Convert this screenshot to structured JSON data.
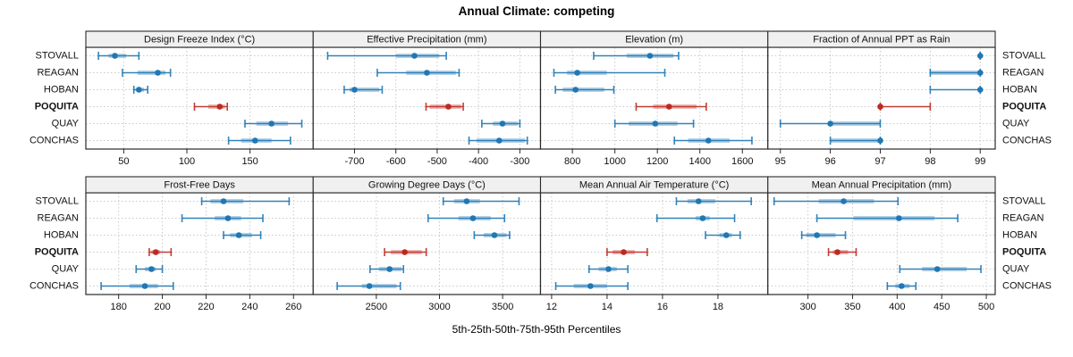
{
  "title": "Annual Climate: competing",
  "axis_title": "5th-25th-50th-75th-95th Percentiles",
  "chart_data": {
    "type": "trellis-dotplot",
    "title": "Annual Climate: competing",
    "xlabel": "5th-25th-50th-75th-95th Percentiles",
    "note": "each bar encodes [5th, 25th, 50th, 75th, 95th] percentiles",
    "sites": [
      "STOVALL",
      "REAGAN",
      "HOBAN",
      "POQUITA",
      "QUAY",
      "CONCHAS"
    ],
    "highlight_site": "POQUITA",
    "colors": {
      "normal": "#1f77b4",
      "highlight": "#bb2a20",
      "grid": "#c9c9c9",
      "frame": "#2a2a2a",
      "strip_bg": "#f0f0f0",
      "text": "#111111"
    },
    "panels": [
      {
        "row": 0,
        "col": 0,
        "title": "Design Freeze Index (°C)",
        "xlim": [
          20,
          200
        ],
        "ticks": [
          50,
          100,
          150
        ],
        "data": {
          "STOVALL": [
            30,
            38,
            43,
            52,
            62
          ],
          "REAGAN": [
            49,
            61,
            77,
            83,
            87
          ],
          "HOBAN": [
            58,
            60,
            62,
            66,
            69
          ],
          "POQUITA": [
            106,
            117,
            126,
            130,
            132
          ],
          "QUAY": [
            146,
            155,
            167,
            180,
            191
          ],
          "CONCHAS": [
            133,
            143,
            154,
            167,
            182
          ]
        }
      },
      {
        "row": 0,
        "col": 1,
        "title": "Effective Precipitation (mm)",
        "xlim": [
          -800,
          -250
        ],
        "ticks": [
          -700,
          -600,
          -500,
          -400,
          -300
        ],
        "data": {
          "STOVALL": [
            -765,
            -600,
            -555,
            -495,
            -478
          ],
          "REAGAN": [
            -645,
            -575,
            -525,
            -455,
            -447
          ],
          "HOBAN": [
            -725,
            -712,
            -700,
            -640,
            -633
          ],
          "POQUITA": [
            -527,
            -518,
            -473,
            -442,
            -437
          ],
          "QUAY": [
            -392,
            -365,
            -342,
            -305,
            -300
          ],
          "CONCHAS": [
            -423,
            -405,
            -350,
            -288,
            -282
          ]
        }
      },
      {
        "row": 0,
        "col": 2,
        "title": "Elevation (m)",
        "xlim": [
          650,
          1720
        ],
        "ticks": [
          800,
          1000,
          1200,
          1400,
          1600
        ],
        "data": {
          "STOVALL": [
            900,
            1055,
            1165,
            1275,
            1300
          ],
          "REAGAN": [
            713,
            775,
            823,
            962,
            1235
          ],
          "HOBAN": [
            720,
            755,
            815,
            950,
            995
          ],
          "POQUITA": [
            1100,
            1180,
            1255,
            1385,
            1430
          ],
          "QUAY": [
            1000,
            1065,
            1190,
            1295,
            1370
          ],
          "CONCHAS": [
            1280,
            1345,
            1440,
            1540,
            1645
          ]
        }
      },
      {
        "row": 0,
        "col": 3,
        "title": "Fraction of Annual PPT as Rain",
        "xlim": [
          94.75,
          99.3
        ],
        "ticks": [
          95,
          96,
          97,
          98,
          99
        ],
        "data": {
          "STOVALL": [
            99,
            99,
            99,
            99,
            99
          ],
          "REAGAN": [
            98,
            98,
            99,
            99,
            99
          ],
          "HOBAN": [
            98,
            99,
            99,
            99,
            99
          ],
          "POQUITA": [
            97,
            97,
            97,
            97,
            98
          ],
          "QUAY": [
            95,
            96,
            96,
            97,
            97
          ],
          "CONCHAS": [
            96,
            96,
            97,
            97,
            97
          ]
        }
      },
      {
        "row": 1,
        "col": 0,
        "title": "Frost-Free Days",
        "xlim": [
          165,
          269
        ],
        "ticks": [
          180,
          200,
          220,
          240,
          260
        ],
        "data": {
          "STOVALL": [
            218,
            222,
            228,
            237,
            258
          ],
          "REAGAN": [
            209,
            224,
            230,
            236,
            246
          ],
          "HOBAN": [
            228,
            231,
            235,
            241,
            245
          ],
          "POQUITA": [
            194,
            195,
            197,
            199,
            204
          ],
          "QUAY": [
            188,
            192,
            195,
            197,
            200
          ],
          "CONCHAS": [
            172,
            185,
            192,
            198,
            205
          ]
        }
      },
      {
        "row": 1,
        "col": 1,
        "title": "Growing Degree Days (°C)",
        "xlim": [
          2000,
          3800
        ],
        "ticks": [
          2500,
          3000,
          3500
        ],
        "data": {
          "STOVALL": [
            3030,
            3115,
            3215,
            3320,
            3630
          ],
          "REAGAN": [
            2910,
            3150,
            3265,
            3405,
            3515
          ],
          "HOBAN": [
            3275,
            3350,
            3435,
            3530,
            3555
          ],
          "POQUITA": [
            2565,
            2615,
            2725,
            2860,
            2895
          ],
          "QUAY": [
            2450,
            2520,
            2605,
            2700,
            2715
          ],
          "CONCHAS": [
            2190,
            2385,
            2445,
            2660,
            2690
          ]
        }
      },
      {
        "row": 1,
        "col": 2,
        "title": "Mean Annual Air Temperature (°C)",
        "xlim": [
          11.6,
          19.8
        ],
        "ticks": [
          12,
          14,
          16,
          18
        ],
        "data": {
          "STOVALL": [
            16.5,
            16.9,
            17.3,
            17.9,
            19.2
          ],
          "REAGAN": [
            15.8,
            17.2,
            17.45,
            17.7,
            18.6
          ],
          "HOBAN": [
            17.55,
            18.05,
            18.3,
            18.5,
            18.8
          ],
          "POQUITA": [
            14.0,
            14.2,
            14.6,
            15.0,
            15.45
          ],
          "QUAY": [
            13.35,
            13.7,
            14.05,
            14.35,
            14.75
          ],
          "CONCHAS": [
            12.15,
            12.8,
            13.4,
            14.0,
            14.75
          ]
        }
      },
      {
        "row": 1,
        "col": 3,
        "title": "Mean Annual Precipitation (mm)",
        "xlim": [
          255,
          510
        ],
        "ticks": [
          300,
          350,
          400,
          450,
          500
        ],
        "data": {
          "STOVALL": [
            262,
            312,
            340,
            374,
            401
          ],
          "REAGAN": [
            310,
            351,
            402,
            442,
            468
          ],
          "HOBAN": [
            293,
            298,
            310,
            331,
            342
          ],
          "POQUITA": [
            323,
            328,
            333,
            345,
            354
          ],
          "QUAY": [
            403,
            428,
            445,
            478,
            494
          ],
          "CONCHAS": [
            389,
            398,
            405,
            414,
            421
          ]
        }
      }
    ]
  }
}
